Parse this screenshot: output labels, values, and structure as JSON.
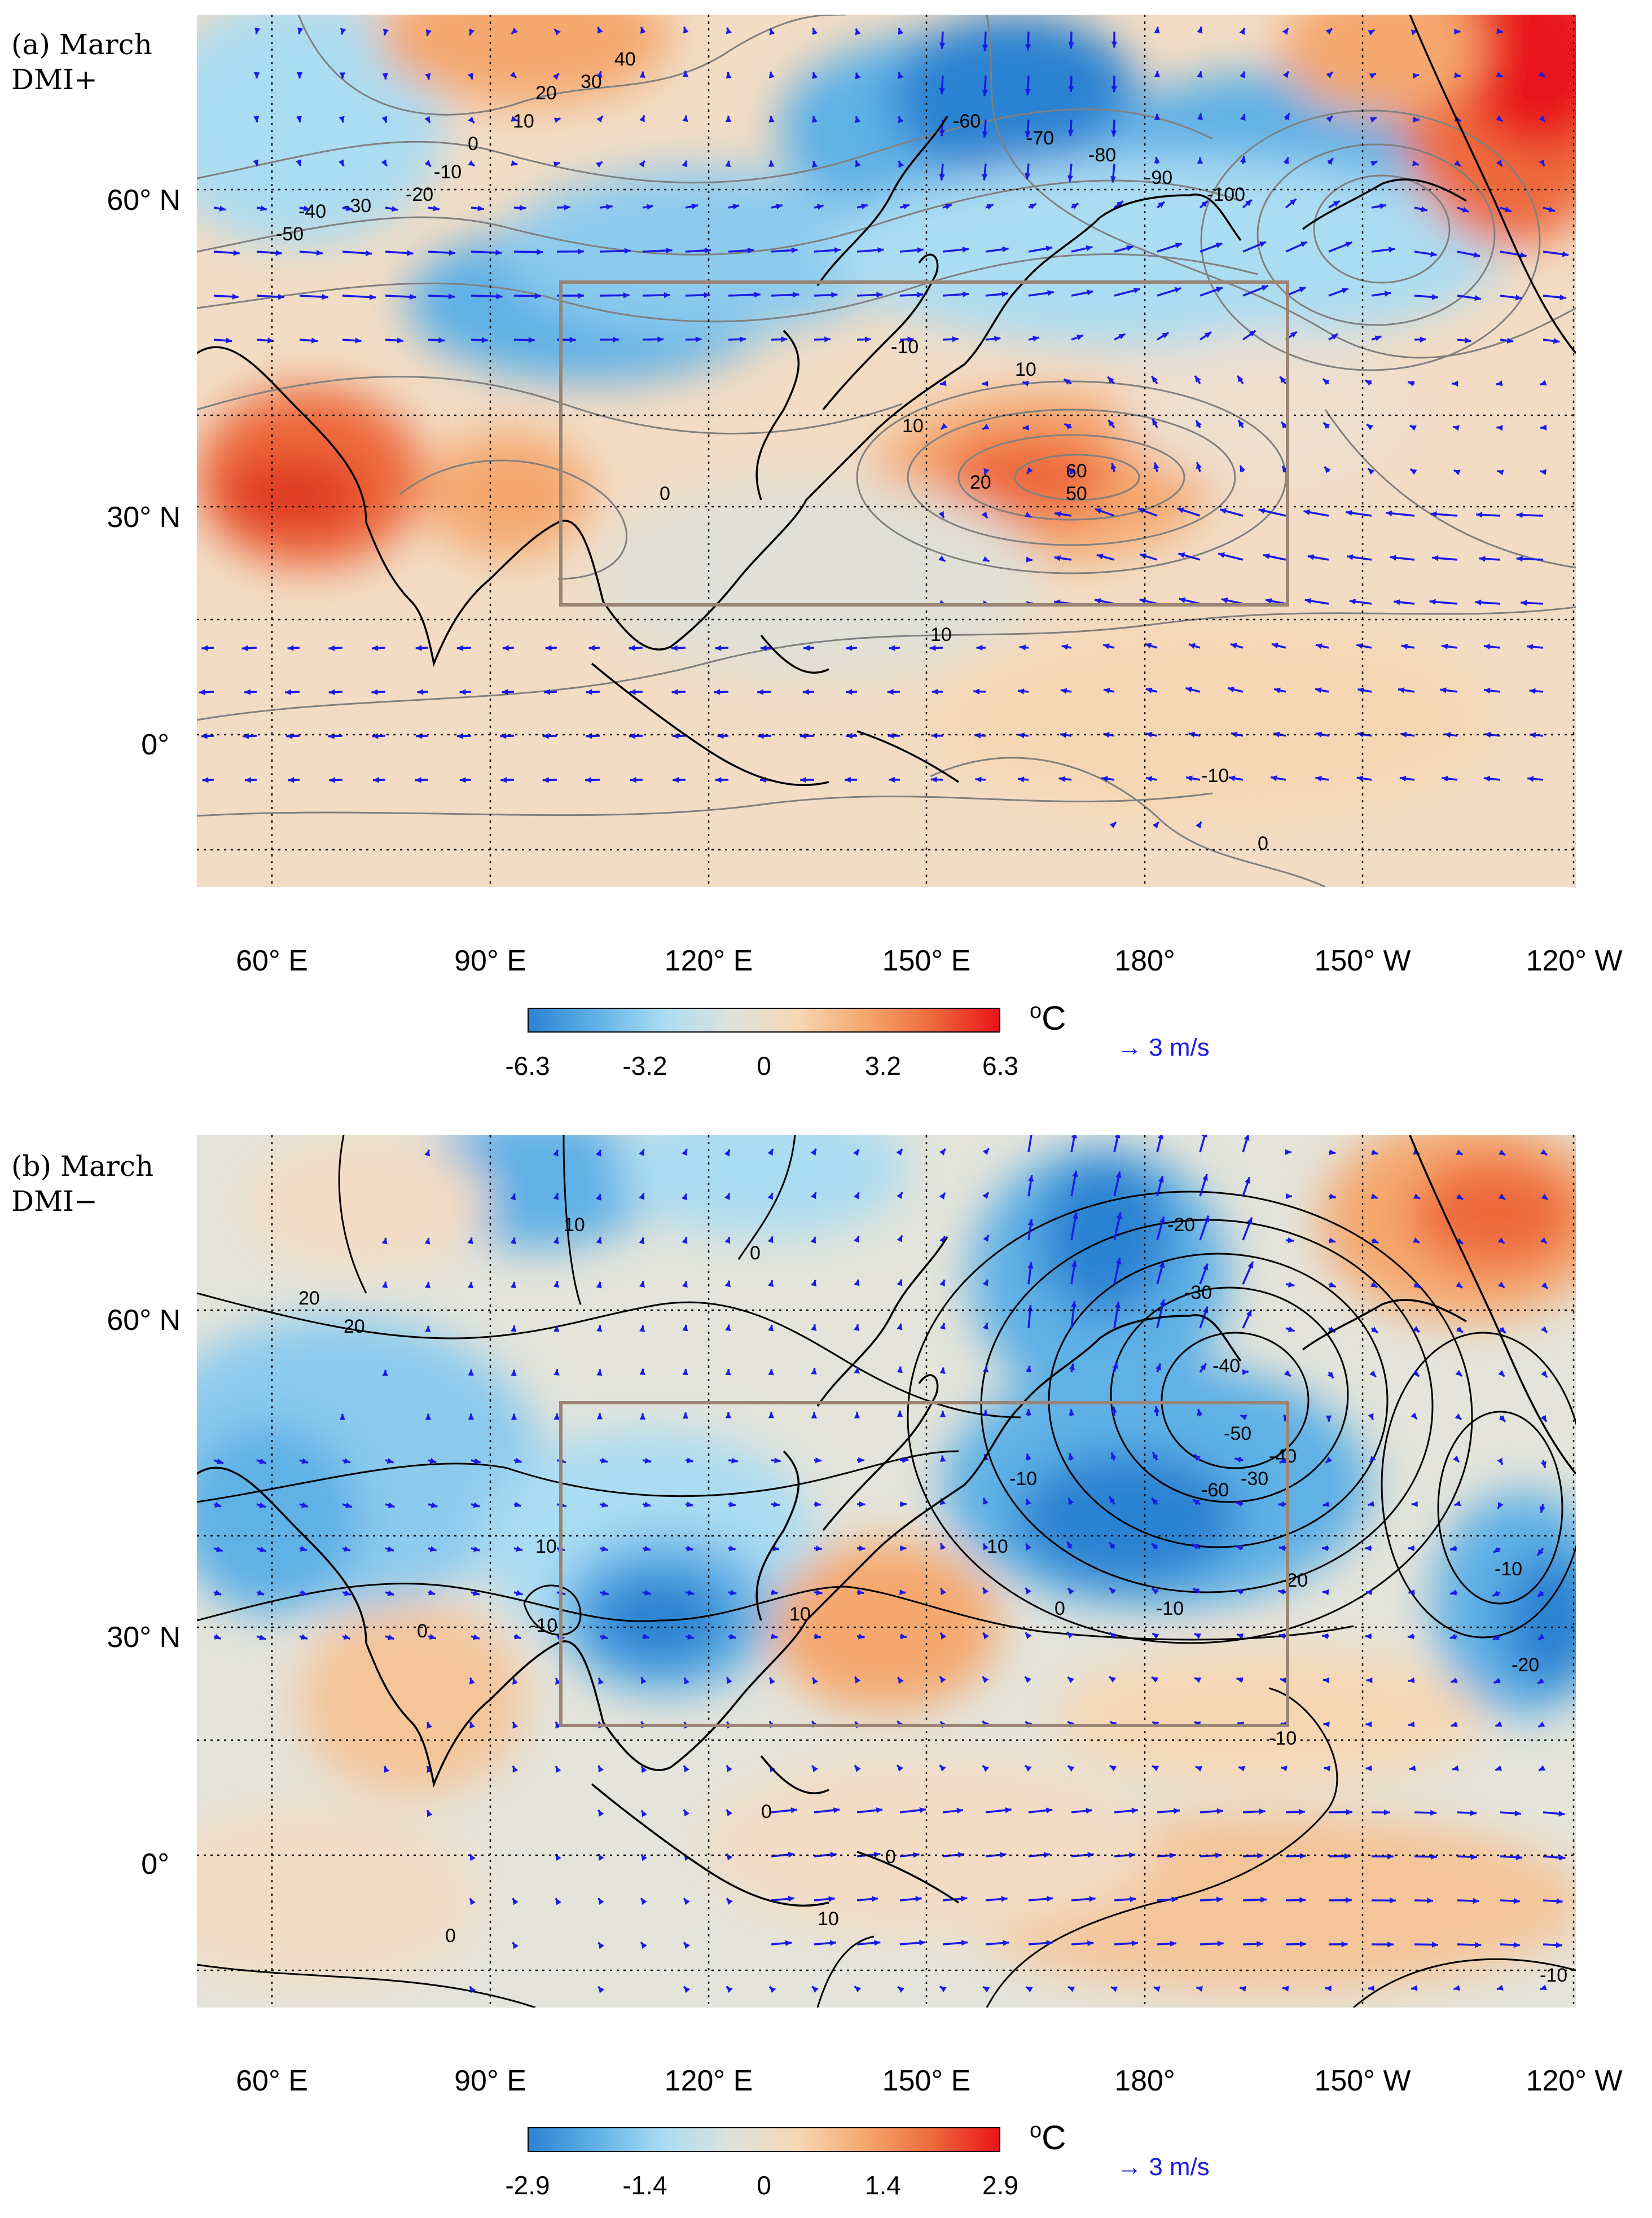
{
  "panels": [
    {
      "label_line1": "(a) March",
      "label_line2": "DMI+",
      "colorbar": {
        "ticks": [
          "-6.3",
          "-3.2",
          "0",
          "3.2",
          "6.3"
        ],
        "unit": "C",
        "unit_prefix": "o",
        "colors": [
          "#2b83d2",
          "#5fb1e6",
          "#aadcf2",
          "#dde3dc",
          "#f6d7b4",
          "#f5a86e",
          "#ee6a3c",
          "#e8141b"
        ]
      },
      "vector_key": "→ 3 m/s",
      "contour_color": "#808080",
      "contour_labels": [
        "40",
        "30",
        "20",
        "10",
        "0",
        "-10",
        "-20",
        "-30",
        "-40",
        "-50",
        "-60",
        "-70",
        "-80",
        "-90",
        "-100",
        "50",
        "60",
        "-10",
        "20",
        "10",
        "0",
        "10",
        "10",
        "-10",
        "0"
      ]
    },
    {
      "label_line1": "(b) March",
      "label_line2": "DMI−",
      "colorbar": {
        "ticks": [
          "-2.9",
          "-1.4",
          "0",
          "1.4",
          "2.9"
        ],
        "unit": "C",
        "unit_prefix": "o",
        "colors": [
          "#2b83d2",
          "#5fb1e6",
          "#aadcf2",
          "#dde3dc",
          "#f6d7b4",
          "#f5a86e",
          "#ee6a3c",
          "#e8141b"
        ]
      },
      "vector_key": "→ 3 m/s",
      "contour_color": "#000000",
      "contour_labels": [
        "20",
        "10",
        "0",
        "20",
        "10",
        "0",
        "-10",
        "0",
        "10",
        "-10",
        "-20",
        "-30",
        "-40",
        "-50",
        "-60",
        "-30",
        "-40",
        "-10",
        "-20",
        "-10",
        "-20",
        "0",
        "-10",
        "10",
        "0",
        "0",
        "10",
        "-10"
      ]
    }
  ],
  "axes": {
    "lat_labels": [
      "60° N",
      "30° N",
      "0°"
    ],
    "lon_labels": [
      "60° E",
      "90° E",
      "120° E",
      "150° E",
      "180°",
      "150° W",
      "120° W"
    ]
  },
  "colors": {
    "vector": "#1a1ae6",
    "box": "#9a8575",
    "grid": "#000000",
    "coast": "#000000"
  }
}
